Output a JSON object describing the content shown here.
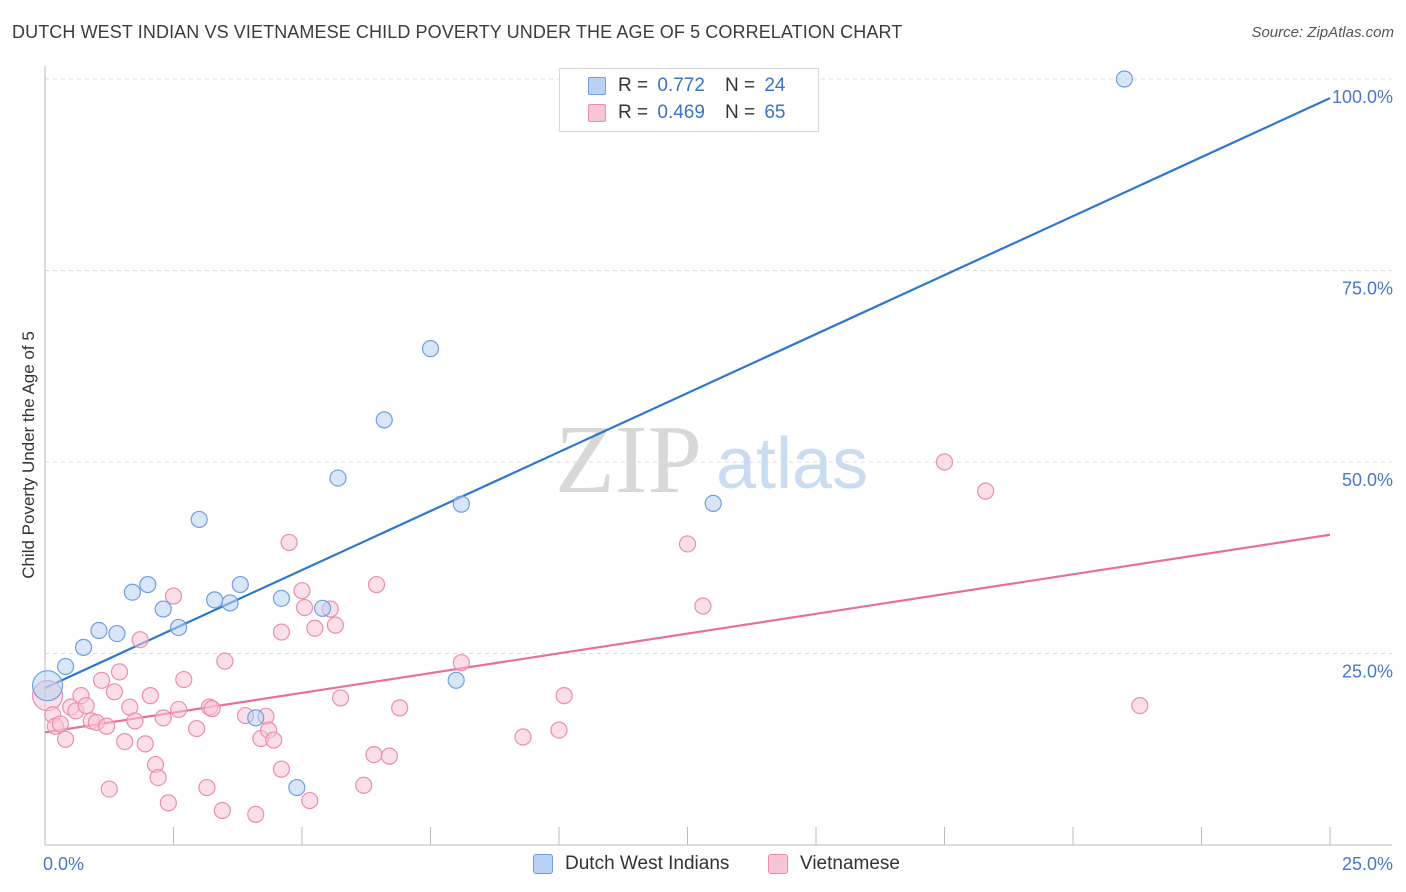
{
  "title": "DUTCH WEST INDIAN VS VIETNAMESE CHILD POVERTY UNDER THE AGE OF 5 CORRELATION CHART",
  "source": "Source: ZipAtlas.com",
  "watermark": {
    "zip": "ZIP",
    "atlas": "atlas"
  },
  "legend_top": [
    {
      "r_label": "R =",
      "r_value": "0.772",
      "n_label": "N =",
      "n_value": "24"
    },
    {
      "r_label": "R =",
      "r_value": "0.469",
      "n_label": "N =",
      "n_value": "65"
    }
  ],
  "legend_bottom": [
    {
      "label": "Dutch West Indians"
    },
    {
      "label": "Vietnamese"
    }
  ],
  "colors": {
    "blue_fill": "#b9d1f2",
    "blue_stroke": "#6f9fe0",
    "blue_line": "#2f76cf",
    "pink_fill": "#f7c5d6",
    "pink_stroke": "#ec8db0",
    "pink_line": "#e8709c",
    "tick_text": "#4a78c8",
    "grid": "#dcdcdc"
  },
  "chart_data": {
    "type": "scatter",
    "title": "DUTCH WEST INDIAN VS VIETNAMESE CHILD POVERTY UNDER THE AGE OF 5 CORRELATION CHART",
    "xlabel": "",
    "ylabel": "Child Poverty Under the Age of 5",
    "xlim": [
      0,
      25
    ],
    "ylim": [
      0,
      100
    ],
    "x_tick_labels": [
      "0.0%",
      "25.0%"
    ],
    "y_ticks": [
      25,
      50,
      75,
      100
    ],
    "y_tick_labels": [
      "25.0%",
      "50.0%",
      "75.0%",
      "100.0%"
    ],
    "series": [
      {
        "name": "Dutch West Indians",
        "color": "#6f9fe0",
        "trend": {
          "x": [
            0,
            25
          ],
          "y": [
            20.5,
            97.5
          ]
        },
        "points": [
          [
            0.05,
            20.8,
            "big"
          ],
          [
            0.4,
            23.3
          ],
          [
            0.75,
            25.8
          ],
          [
            1.05,
            28.0
          ],
          [
            1.4,
            27.6
          ],
          [
            1.7,
            33.0
          ],
          [
            2.0,
            34.0
          ],
          [
            2.3,
            30.8
          ],
          [
            2.6,
            28.4
          ],
          [
            3.0,
            42.5
          ],
          [
            3.3,
            32.0
          ],
          [
            3.6,
            31.6
          ],
          [
            3.8,
            34.0
          ],
          [
            4.1,
            16.6
          ],
          [
            4.6,
            32.2
          ],
          [
            4.9,
            7.5
          ],
          [
            5.4,
            30.9
          ],
          [
            5.7,
            47.9
          ],
          [
            6.6,
            55.5
          ],
          [
            7.5,
            64.8
          ],
          [
            8.0,
            21.5
          ],
          [
            8.1,
            44.5
          ],
          [
            13.0,
            44.6
          ],
          [
            21.0,
            100.0
          ]
        ]
      },
      {
        "name": "Vietnamese",
        "color": "#ec8db0",
        "trend": {
          "x": [
            0,
            25
          ],
          "y": [
            14.7,
            40.5
          ]
        },
        "points": [
          [
            0.05,
            19.5,
            "big"
          ],
          [
            0.15,
            17.0
          ],
          [
            0.2,
            15.5
          ],
          [
            0.3,
            15.8
          ],
          [
            0.4,
            13.8
          ],
          [
            0.5,
            18.0
          ],
          [
            0.6,
            17.5
          ],
          [
            0.7,
            19.5
          ],
          [
            0.8,
            18.2
          ],
          [
            0.9,
            16.2
          ],
          [
            1.0,
            16.0
          ],
          [
            1.1,
            21.5
          ],
          [
            1.2,
            15.5
          ],
          [
            1.25,
            7.3
          ],
          [
            1.35,
            20.0
          ],
          [
            1.45,
            22.6
          ],
          [
            1.55,
            13.5
          ],
          [
            1.65,
            18.0
          ],
          [
            1.75,
            16.2
          ],
          [
            1.85,
            26.8
          ],
          [
            1.95,
            13.2
          ],
          [
            2.05,
            19.5
          ],
          [
            2.15,
            10.5
          ],
          [
            2.2,
            8.8
          ],
          [
            2.3,
            16.6
          ],
          [
            2.4,
            5.5
          ],
          [
            2.5,
            32.5
          ],
          [
            2.6,
            17.7
          ],
          [
            2.7,
            21.6
          ],
          [
            2.95,
            15.2
          ],
          [
            3.15,
            7.5
          ],
          [
            3.2,
            18.0
          ],
          [
            3.25,
            17.8
          ],
          [
            3.45,
            4.5
          ],
          [
            3.5,
            24.0
          ],
          [
            3.9,
            16.9
          ],
          [
            4.1,
            4.0
          ],
          [
            4.2,
            13.9
          ],
          [
            4.3,
            16.8
          ],
          [
            4.35,
            15.0
          ],
          [
            4.45,
            13.7
          ],
          [
            4.6,
            9.9
          ],
          [
            4.6,
            27.8
          ],
          [
            4.75,
            39.5
          ],
          [
            5.0,
            33.2
          ],
          [
            5.05,
            31.0
          ],
          [
            5.15,
            5.8
          ],
          [
            5.25,
            28.3
          ],
          [
            5.55,
            30.8
          ],
          [
            5.65,
            28.7
          ],
          [
            5.75,
            19.2
          ],
          [
            6.2,
            7.8
          ],
          [
            6.4,
            11.8
          ],
          [
            6.45,
            34.0
          ],
          [
            6.7,
            11.6
          ],
          [
            6.9,
            17.9
          ],
          [
            8.1,
            23.8
          ],
          [
            9.3,
            14.1
          ],
          [
            10.0,
            15.0
          ],
          [
            10.1,
            19.5
          ],
          [
            12.5,
            39.3
          ],
          [
            12.8,
            31.2
          ],
          [
            17.5,
            50.0
          ],
          [
            18.3,
            46.2
          ],
          [
            21.3,
            18.2
          ]
        ]
      }
    ]
  }
}
